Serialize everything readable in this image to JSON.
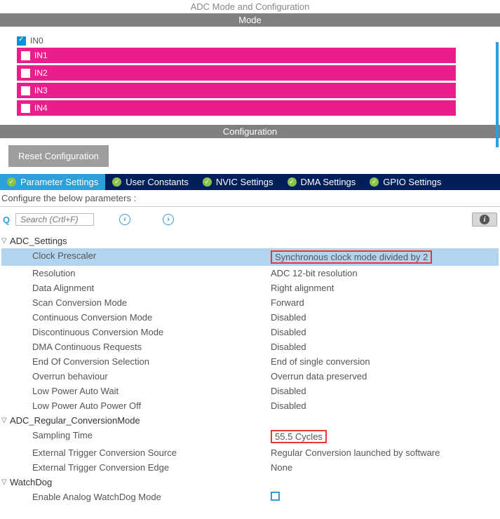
{
  "title": "ADC Mode and Configuration",
  "mode_header": "Mode",
  "config_header": "Configuration",
  "channels": [
    {
      "label": "IN0",
      "checked": true,
      "pink": false
    },
    {
      "label": "IN1",
      "checked": false,
      "pink": true
    },
    {
      "label": "IN2",
      "checked": false,
      "pink": true
    },
    {
      "label": "IN3",
      "checked": false,
      "pink": true
    },
    {
      "label": "IN4",
      "checked": false,
      "pink": true
    }
  ],
  "reset_btn": "Reset Configuration",
  "tabs": [
    {
      "label": "Parameter Settings",
      "active": true
    },
    {
      "label": "User Constants",
      "active": false
    },
    {
      "label": "NVIC Settings",
      "active": false
    },
    {
      "label": "DMA Settings",
      "active": false
    },
    {
      "label": "GPIO Settings",
      "active": false
    }
  ],
  "subtitle": "Configure the below parameters :",
  "search_placeholder": "Search (Crtl+F)",
  "groups": [
    {
      "name": "ADC_Settings",
      "rows": [
        {
          "name": "Clock Prescaler",
          "value": "Synchronous clock mode divided by 2",
          "selected": true,
          "redbox": true
        },
        {
          "name": "Resolution",
          "value": "ADC 12-bit resolution"
        },
        {
          "name": "Data Alignment",
          "value": "Right alignment"
        },
        {
          "name": "Scan Conversion Mode",
          "value": "Forward"
        },
        {
          "name": "Continuous Conversion Mode",
          "value": "Disabled"
        },
        {
          "name": "Discontinuous Conversion Mode",
          "value": "Disabled"
        },
        {
          "name": "DMA Continuous Requests",
          "value": "Disabled"
        },
        {
          "name": "End Of Conversion Selection",
          "value": "End of single conversion"
        },
        {
          "name": "Overrun behaviour",
          "value": "Overrun data preserved"
        },
        {
          "name": "Low Power Auto Wait",
          "value": "Disabled"
        },
        {
          "name": "Low Power Auto Power Off",
          "value": "Disabled"
        }
      ]
    },
    {
      "name": "ADC_Regular_ConversionMode",
      "rows": [
        {
          "name": "Sampling Time",
          "value": "55.5 Cycles",
          "redbox": true
        },
        {
          "name": "External Trigger Conversion Source",
          "value": "Regular Conversion launched by software"
        },
        {
          "name": "External Trigger Conversion Edge",
          "value": "None"
        }
      ]
    },
    {
      "name": "WatchDog",
      "rows": [
        {
          "name": "Enable Analog WatchDog Mode",
          "value": "",
          "checkbox": true
        }
      ]
    }
  ]
}
